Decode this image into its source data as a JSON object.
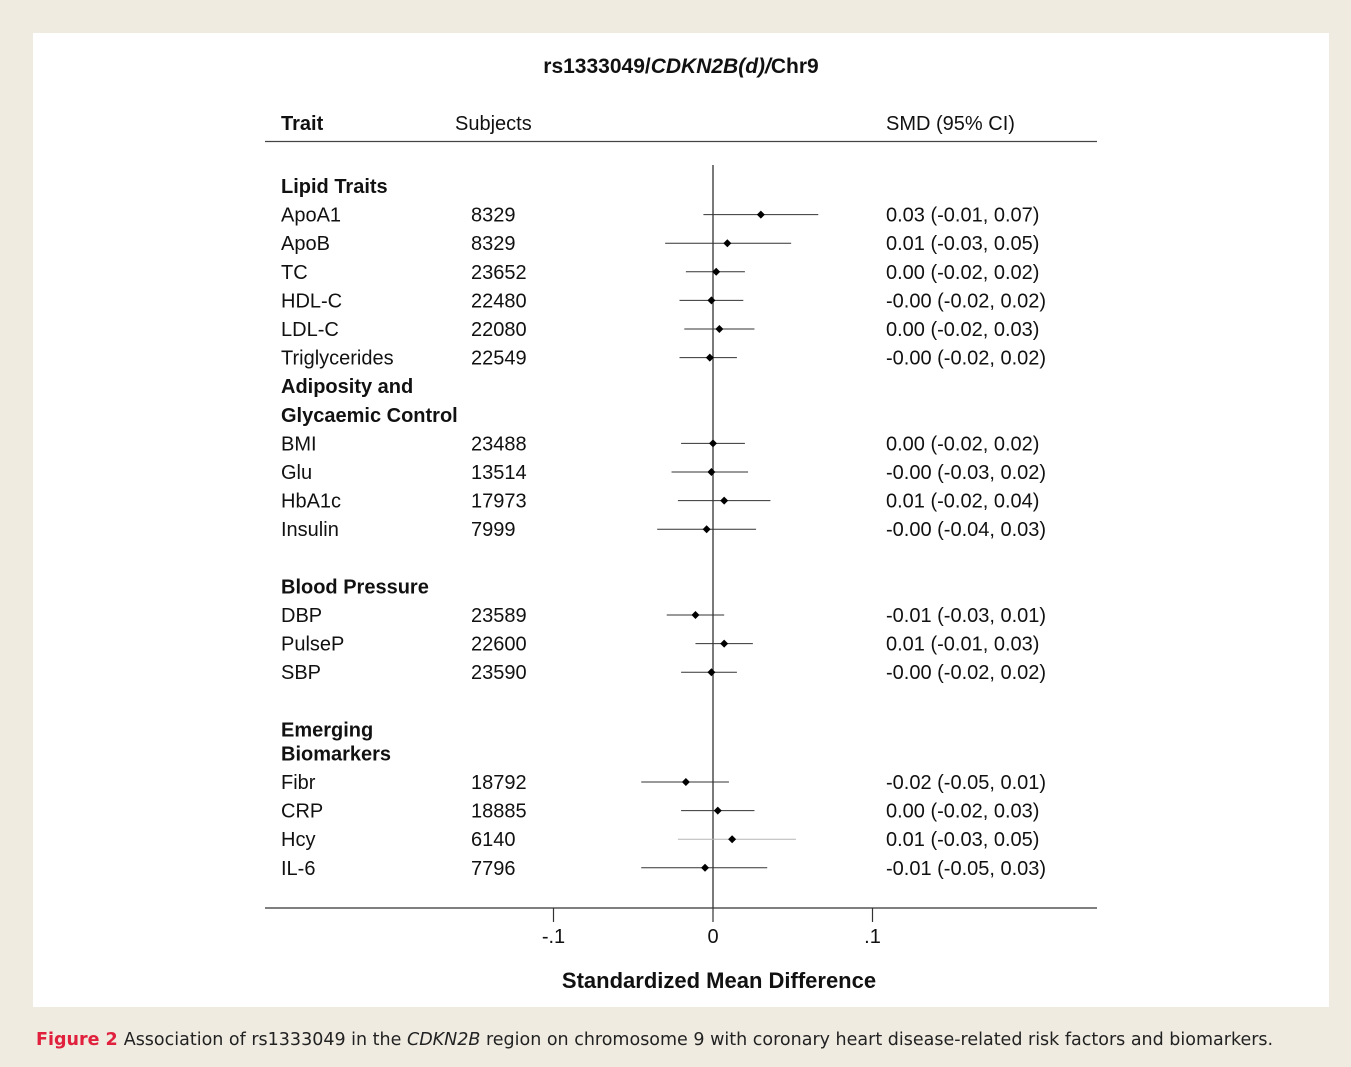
{
  "chart_data": {
    "type": "forest",
    "title_parts": [
      {
        "text": "rs1333049/",
        "italic": false
      },
      {
        "text": "CDKN2B(d)/",
        "italic": true
      },
      {
        "text": "Chr9",
        "italic": false
      }
    ],
    "headers": {
      "trait": "Trait",
      "subjects": "Subjects",
      "smd": "SMD (95% CI)"
    },
    "xlabel": "Standardized Mean Difference",
    "xlim": [
      -0.105,
      0.105
    ],
    "xticks": [
      {
        "value": -0.1,
        "label": "-.1"
      },
      {
        "value": 0,
        "label": "0"
      },
      {
        "value": 0.1,
        "label": ".1"
      }
    ],
    "reference_line": 0,
    "rows": [
      {
        "kind": "group",
        "label": "Lipid Traits"
      },
      {
        "kind": "trait",
        "trait": "ApoA1",
        "subjects": "8329",
        "est": 0.03,
        "lo": -0.006,
        "hi": 0.066,
        "ci_text": "0.03 (-0.01, 0.07)"
      },
      {
        "kind": "trait",
        "trait": "ApoB",
        "subjects": "8329",
        "est": 0.009,
        "lo": -0.03,
        "hi": 0.049,
        "ci_text": "0.01 (-0.03, 0.05)"
      },
      {
        "kind": "trait",
        "trait": "TC",
        "subjects": "23652",
        "est": 0.002,
        "lo": -0.017,
        "hi": 0.02,
        "ci_text": "0.00 (-0.02, 0.02)"
      },
      {
        "kind": "trait",
        "trait": "HDL-C",
        "subjects": "22480",
        "est": -0.001,
        "lo": -0.021,
        "hi": 0.019,
        "ci_text": "-0.00 (-0.02, 0.02)"
      },
      {
        "kind": "trait",
        "trait": "LDL-C",
        "subjects": "22080",
        "est": 0.004,
        "lo": -0.018,
        "hi": 0.026,
        "ci_text": "0.00 (-0.02, 0.03)"
      },
      {
        "kind": "trait",
        "trait": "Triglycerides",
        "subjects": "22549",
        "est": -0.002,
        "lo": -0.021,
        "hi": 0.015,
        "ci_text": "-0.00 (-0.02, 0.02)"
      },
      {
        "kind": "group",
        "label": "Adiposity and"
      },
      {
        "kind": "group",
        "label": "Glycaemic Control"
      },
      {
        "kind": "trait",
        "trait": "BMI",
        "subjects": "23488",
        "est": 0.0,
        "lo": -0.02,
        "hi": 0.02,
        "ci_text": "0.00 (-0.02, 0.02)"
      },
      {
        "kind": "trait",
        "trait": "Glu",
        "subjects": "13514",
        "est": -0.001,
        "lo": -0.026,
        "hi": 0.022,
        "ci_text": "-0.00 (-0.03, 0.02)"
      },
      {
        "kind": "trait",
        "trait": "HbA1c",
        "subjects": "17973",
        "est": 0.007,
        "lo": -0.022,
        "hi": 0.036,
        "ci_text": "0.01 (-0.02, 0.04)"
      },
      {
        "kind": "trait",
        "trait": "Insulin",
        "subjects": "7999",
        "est": -0.004,
        "lo": -0.035,
        "hi": 0.027,
        "ci_text": "-0.00 (-0.04, 0.03)"
      },
      {
        "kind": "blank"
      },
      {
        "kind": "group",
        "label": "Blood Pressure"
      },
      {
        "kind": "trait",
        "trait": "DBP",
        "subjects": "23589",
        "est": -0.011,
        "lo": -0.029,
        "hi": 0.007,
        "ci_text": "-0.01 (-0.03, 0.01)"
      },
      {
        "kind": "trait",
        "trait": "PulseP",
        "subjects": "22600",
        "est": 0.007,
        "lo": -0.011,
        "hi": 0.025,
        "ci_text": "0.01 (-0.01, 0.03)"
      },
      {
        "kind": "trait",
        "trait": "SBP",
        "subjects": "23590",
        "est": -0.001,
        "lo": -0.02,
        "hi": 0.015,
        "ci_text": "-0.00 (-0.02, 0.02)"
      },
      {
        "kind": "blank"
      },
      {
        "kind": "group",
        "label": "Emerging"
      },
      {
        "kind": "group",
        "label": "Biomarkers",
        "tight": true
      },
      {
        "kind": "trait",
        "trait": "Fibr",
        "subjects": "18792",
        "est": -0.017,
        "lo": -0.045,
        "hi": 0.01,
        "ci_text": "-0.02 (-0.05, 0.01)"
      },
      {
        "kind": "trait",
        "trait": "CRP",
        "subjects": "18885",
        "est": 0.003,
        "lo": -0.02,
        "hi": 0.026,
        "ci_text": "0.00 (-0.02, 0.03)"
      },
      {
        "kind": "trait",
        "trait": "Hcy",
        "subjects": "6140",
        "est": 0.012,
        "lo": -0.022,
        "hi": 0.052,
        "ci_text": "0.01 (-0.03, 0.05)",
        "faint": true
      },
      {
        "kind": "trait",
        "trait": "IL-6",
        "subjects": "7796",
        "est": -0.005,
        "lo": -0.045,
        "hi": 0.034,
        "ci_text": "-0.01 (-0.05, 0.03)"
      }
    ]
  },
  "caption": {
    "label": "Figure 2",
    "parts": [
      {
        "text": "Association of rs1333049 in the ",
        "italic": false
      },
      {
        "text": "CDKN2B",
        "italic": true
      },
      {
        "text": " region on chromosome 9 with coronary heart disease-related risk factors and biomarkers.",
        "italic": false
      }
    ]
  }
}
